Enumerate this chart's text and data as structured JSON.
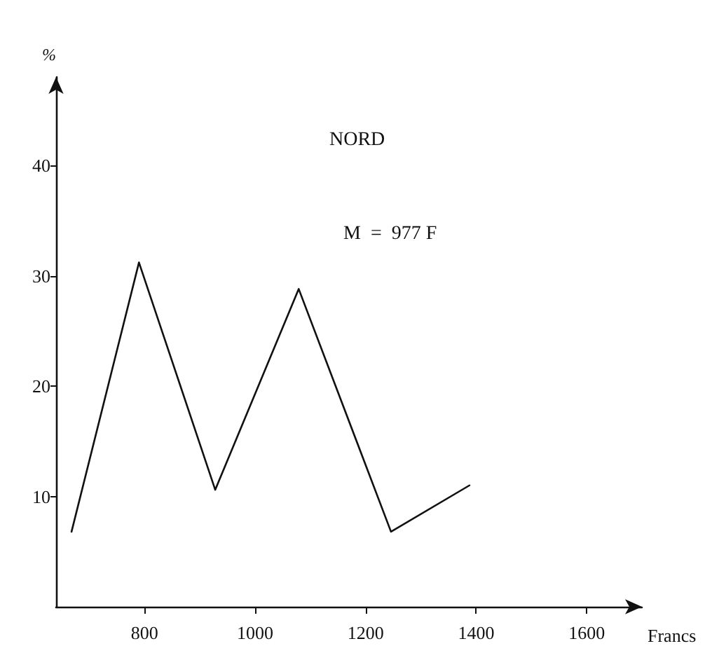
{
  "chart_data": {
    "type": "line",
    "title": "NORD",
    "xlabel": "Francs",
    "ylabel": "%",
    "annotations": [
      "M  =  977 F"
    ],
    "x": [
      668,
      790,
      928,
      1079,
      1246,
      1388
    ],
    "values": [
      6.8,
      31.2,
      10.6,
      28.8,
      6.8,
      11
    ],
    "color": "#111111",
    "xlim": [
      640,
      1700
    ],
    "ylim": [
      0,
      48
    ],
    "xticks": [
      800,
      1000,
      1200,
      1400,
      1600
    ],
    "yticks": [
      10,
      20,
      30,
      40
    ],
    "grid": false,
    "marker": "none",
    "line_style": "solid"
  }
}
